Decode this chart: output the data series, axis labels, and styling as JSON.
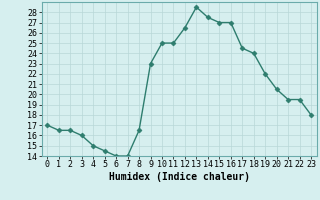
{
  "x": [
    0,
    1,
    2,
    3,
    4,
    5,
    6,
    7,
    8,
    9,
    10,
    11,
    12,
    13,
    14,
    15,
    16,
    17,
    18,
    19,
    20,
    21,
    22,
    23
  ],
  "y": [
    17.0,
    16.5,
    16.5,
    16.0,
    15.0,
    14.5,
    14.0,
    14.0,
    16.5,
    23.0,
    25.0,
    25.0,
    26.5,
    28.5,
    27.5,
    27.0,
    27.0,
    24.5,
    24.0,
    22.0,
    20.5,
    19.5,
    19.5,
    18.0
  ],
  "line_color": "#2e7d6e",
  "marker": "D",
  "marker_size": 2.5,
  "bg_color": "#d6efef",
  "grid_color": "#b8d8d8",
  "xlabel": "Humidex (Indice chaleur)",
  "ylim": [
    14,
    29
  ],
  "xlim": [
    -0.5,
    23.5
  ],
  "yticks": [
    14,
    15,
    16,
    17,
    18,
    19,
    20,
    21,
    22,
    23,
    24,
    25,
    26,
    27,
    28
  ],
  "xticks": [
    0,
    1,
    2,
    3,
    4,
    5,
    6,
    7,
    8,
    9,
    10,
    11,
    12,
    13,
    14,
    15,
    16,
    17,
    18,
    19,
    20,
    21,
    22,
    23
  ],
  "xlabel_fontsize": 7,
  "tick_fontsize": 6,
  "line_width": 1.0
}
